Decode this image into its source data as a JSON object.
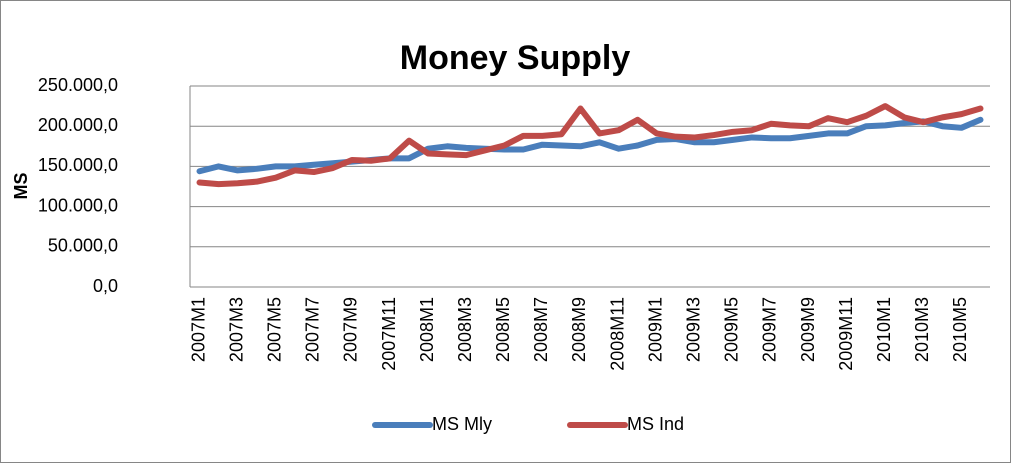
{
  "chart_data": {
    "type": "line",
    "title": "Money Supply",
    "y_label": "MS",
    "categories": [
      "2007M1",
      null,
      "2007M3",
      null,
      "2007M5",
      null,
      "2007M7",
      null,
      "2007M9",
      null,
      "2007M11",
      null,
      "2008M1",
      null,
      "2008M3",
      null,
      "2008M5",
      null,
      "2008M7",
      null,
      "2008M9",
      null,
      "2008M11",
      null,
      "2009M1",
      null,
      "2009M3",
      null,
      "2009M5",
      null,
      "2009M7",
      null,
      "2009M9",
      null,
      "2009M11",
      null,
      "2010M1",
      null,
      "2010M3",
      null,
      "2010M5",
      null
    ],
    "series": [
      {
        "name": "MS Mly",
        "color": "#4a7ebb",
        "values": [
          144000,
          150000,
          145000,
          147000,
          150000,
          150000,
          152000,
          154000,
          156000,
          158000,
          160000,
          160000,
          172000,
          175000,
          173000,
          172000,
          171000,
          171000,
          177000,
          176000,
          175000,
          180000,
          172000,
          176000,
          183000,
          184000,
          180000,
          180000,
          183000,
          186000,
          185000,
          185000,
          188000,
          191000,
          191000,
          200000,
          201000,
          204000,
          206000,
          200000,
          198000,
          208000
        ]
      },
      {
        "name": "MS Ind",
        "color": "#be4b48",
        "values": [
          130000,
          128000,
          129000,
          131000,
          136000,
          145000,
          143000,
          148000,
          158000,
          157000,
          160000,
          182000,
          166000,
          165000,
          164000,
          170000,
          176000,
          188000,
          188000,
          190000,
          222000,
          191000,
          195000,
          208000,
          191000,
          187000,
          186000,
          189000,
          193000,
          195000,
          203000,
          201000,
          200000,
          210000,
          205000,
          213000,
          225000,
          211000,
          205000,
          211000,
          215000,
          222000
        ]
      }
    ],
    "ylim": [
      0,
      250000
    ],
    "yticks": [
      {
        "value": 0,
        "label": "0,0"
      },
      {
        "value": 50000,
        "label": "50.000,0"
      },
      {
        "value": 100000,
        "label": "100.000,0"
      },
      {
        "value": 150000,
        "label": "150.000,0"
      },
      {
        "value": 200000,
        "label": "200.000,0"
      },
      {
        "value": 250000,
        "label": "250.000,0"
      }
    ],
    "grid": true,
    "legend": "bottom"
  }
}
